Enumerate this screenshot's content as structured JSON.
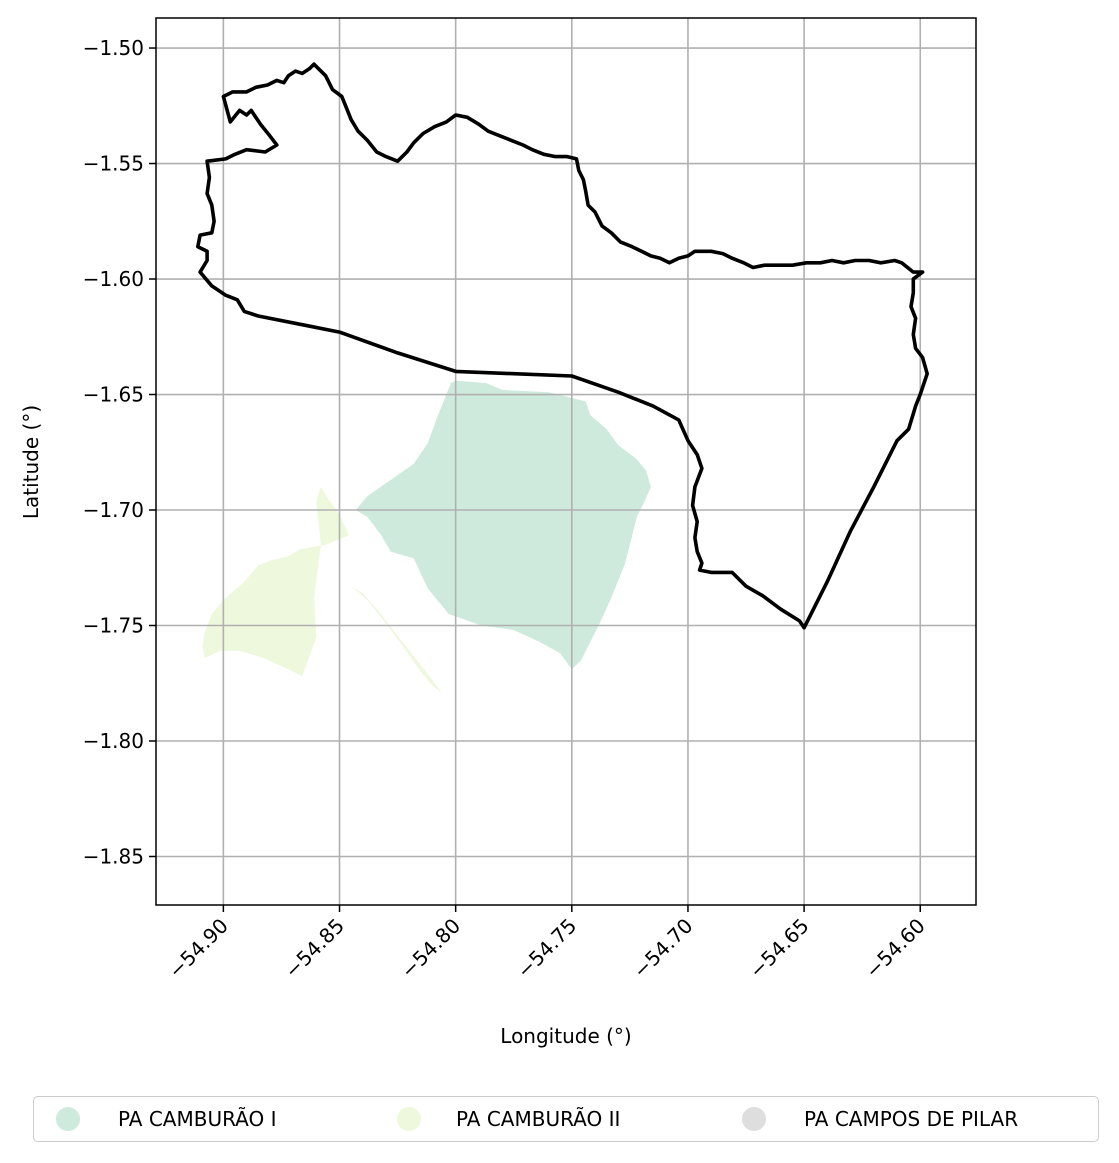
{
  "map": {
    "xlabel": "Longitude (°)",
    "ylabel": "Latitude (°)",
    "xlim": [
      -54.929,
      -54.576
    ],
    "ylim": [
      -1.871,
      -1.487
    ],
    "x_ticks": [
      {
        "value": -54.9,
        "label": "−54.90"
      },
      {
        "value": -54.85,
        "label": "−54.85"
      },
      {
        "value": -54.8,
        "label": "−54.80"
      },
      {
        "value": -54.75,
        "label": "−54.75"
      },
      {
        "value": -54.7,
        "label": "−54.70"
      },
      {
        "value": -54.65,
        "label": "−54.65"
      },
      {
        "value": -54.6,
        "label": "−54.60"
      }
    ],
    "y_ticks": [
      {
        "value": -1.5,
        "label": "−1.50"
      },
      {
        "value": -1.55,
        "label": "−1.55"
      },
      {
        "value": -1.6,
        "label": "−1.60"
      },
      {
        "value": -1.65,
        "label": "−1.65"
      },
      {
        "value": -1.7,
        "label": "−1.70"
      },
      {
        "value": -1.75,
        "label": "−1.75"
      },
      {
        "value": -1.8,
        "label": "−1.80"
      },
      {
        "value": -1.85,
        "label": "−1.85"
      }
    ],
    "grid": true,
    "boundary_color": "#000000",
    "boundary": [
      [
        -54.9,
        -1.521
      ],
      [
        -54.897,
        -1.532
      ],
      [
        -54.893,
        -1.527
      ],
      [
        -54.89,
        -1.529
      ],
      [
        -54.888,
        -1.527
      ],
      [
        -54.884,
        -1.533
      ],
      [
        -54.88,
        -1.538
      ],
      [
        -54.877,
        -1.542
      ],
      [
        -54.882,
        -1.545
      ],
      [
        -54.89,
        -1.544
      ],
      [
        -54.895,
        -1.546
      ],
      [
        -54.899,
        -1.548
      ],
      [
        -54.907,
        -1.549
      ],
      [
        -54.906,
        -1.556
      ],
      [
        -54.907,
        -1.563
      ],
      [
        -54.905,
        -1.568
      ],
      [
        -54.904,
        -1.575
      ],
      [
        -54.905,
        -1.58
      ],
      [
        -54.91,
        -1.581
      ],
      [
        -54.911,
        -1.586
      ],
      [
        -54.907,
        -1.588
      ],
      [
        -54.907,
        -1.592
      ],
      [
        -54.91,
        -1.597
      ],
      [
        -54.905,
        -1.603
      ],
      [
        -54.899,
        -1.607
      ],
      [
        -54.894,
        -1.609
      ],
      [
        -54.891,
        -1.614
      ],
      [
        -54.885,
        -1.616
      ],
      [
        -54.865,
        -1.62
      ],
      [
        -54.85,
        -1.623
      ],
      [
        -54.825,
        -1.632
      ],
      [
        -54.8,
        -1.64
      ],
      [
        -54.775,
        -1.641
      ],
      [
        -54.75,
        -1.642
      ],
      [
        -54.73,
        -1.649
      ],
      [
        -54.715,
        -1.655
      ],
      [
        -54.704,
        -1.661
      ],
      [
        -54.7,
        -1.67
      ],
      [
        -54.696,
        -1.676
      ],
      [
        -54.694,
        -1.682
      ],
      [
        -54.697,
        -1.69
      ],
      [
        -54.698,
        -1.698
      ],
      [
        -54.696,
        -1.705
      ],
      [
        -54.697,
        -1.712
      ],
      [
        -54.696,
        -1.718
      ],
      [
        -54.694,
        -1.723
      ],
      [
        -54.695,
        -1.726
      ],
      [
        -54.69,
        -1.727
      ],
      [
        -54.681,
        -1.727
      ],
      [
        -54.675,
        -1.733
      ],
      [
        -54.668,
        -1.737
      ],
      [
        -54.66,
        -1.743
      ],
      [
        -54.652,
        -1.748
      ],
      [
        -54.65,
        -1.751
      ],
      [
        -54.64,
        -1.731
      ],
      [
        -54.63,
        -1.709
      ],
      [
        -54.62,
        -1.69
      ],
      [
        -54.61,
        -1.67
      ],
      [
        -54.605,
        -1.665
      ],
      [
        -54.602,
        -1.655
      ],
      [
        -54.6,
        -1.65
      ],
      [
        -54.597,
        -1.641
      ],
      [
        -54.599,
        -1.634
      ],
      [
        -54.602,
        -1.63
      ],
      [
        -54.603,
        -1.624
      ],
      [
        -54.602,
        -1.617
      ],
      [
        -54.604,
        -1.612
      ],
      [
        -54.603,
        -1.606
      ],
      [
        -54.603,
        -1.6
      ],
      [
        -54.599,
        -1.597
      ],
      [
        -54.603,
        -1.597
      ],
      [
        -54.608,
        -1.593
      ],
      [
        -54.611,
        -1.592
      ],
      [
        -54.617,
        -1.593
      ],
      [
        -54.622,
        -1.592
      ],
      [
        -54.628,
        -1.592
      ],
      [
        -54.633,
        -1.593
      ],
      [
        -54.638,
        -1.592
      ],
      [
        -54.643,
        -1.593
      ],
      [
        -54.649,
        -1.593
      ],
      [
        -54.655,
        -1.594
      ],
      [
        -54.661,
        -1.594
      ],
      [
        -54.667,
        -1.594
      ],
      [
        -54.672,
        -1.595
      ],
      [
        -54.676,
        -1.593
      ],
      [
        -54.681,
        -1.591
      ],
      [
        -54.685,
        -1.589
      ],
      [
        -54.69,
        -1.588
      ],
      [
        -54.697,
        -1.588
      ],
      [
        -54.7,
        -1.59
      ],
      [
        -54.704,
        -1.591
      ],
      [
        -54.708,
        -1.593
      ],
      [
        -54.712,
        -1.591
      ],
      [
        -54.716,
        -1.59
      ],
      [
        -54.72,
        -1.588
      ],
      [
        -54.724,
        -1.586
      ],
      [
        -54.729,
        -1.584
      ],
      [
        -54.733,
        -1.58
      ],
      [
        -54.737,
        -1.577
      ],
      [
        -54.74,
        -1.571
      ],
      [
        -54.743,
        -1.568
      ],
      [
        -54.744,
        -1.562
      ],
      [
        -54.745,
        -1.557
      ],
      [
        -54.747,
        -1.553
      ],
      [
        -54.748,
        -1.548
      ],
      [
        -54.752,
        -1.547
      ],
      [
        -54.757,
        -1.547
      ],
      [
        -54.762,
        -1.546
      ],
      [
        -54.767,
        -1.544
      ],
      [
        -54.771,
        -1.542
      ],
      [
        -54.776,
        -1.54
      ],
      [
        -54.781,
        -1.538
      ],
      [
        -54.786,
        -1.536
      ],
      [
        -54.79,
        -1.533
      ],
      [
        -54.795,
        -1.53
      ],
      [
        -54.8,
        -1.529
      ],
      [
        -54.804,
        -1.532
      ],
      [
        -54.809,
        -1.534
      ],
      [
        -54.814,
        -1.537
      ],
      [
        -54.818,
        -1.541
      ],
      [
        -54.821,
        -1.545
      ],
      [
        -54.825,
        -1.549
      ],
      [
        -54.83,
        -1.547
      ],
      [
        -54.834,
        -1.545
      ],
      [
        -54.838,
        -1.54
      ],
      [
        -54.842,
        -1.536
      ],
      [
        -54.845,
        -1.531
      ],
      [
        -54.847,
        -1.526
      ],
      [
        -54.849,
        -1.521
      ],
      [
        -54.853,
        -1.518
      ],
      [
        -54.856,
        -1.512
      ],
      [
        -54.859,
        -1.509
      ],
      [
        -54.861,
        -1.507
      ],
      [
        -54.863,
        -1.509
      ],
      [
        -54.866,
        -1.511
      ],
      [
        -54.869,
        -1.51
      ],
      [
        -54.872,
        -1.512
      ],
      [
        -54.874,
        -1.515
      ],
      [
        -54.877,
        -1.514
      ],
      [
        -54.881,
        -1.516
      ],
      [
        -54.886,
        -1.517
      ],
      [
        -54.89,
        -1.519
      ],
      [
        -54.896,
        -1.519
      ],
      [
        -54.9,
        -1.521
      ]
    ],
    "regions": [
      {
        "name": "PA CAMBURÃO I",
        "color": "#cdeadc",
        "polygons": [
          [
            [
              -54.802,
              -1.645
            ],
            [
              -54.8,
              -1.644
            ],
            [
              -54.787,
              -1.645
            ],
            [
              -54.78,
              -1.648
            ],
            [
              -54.76,
              -1.649
            ],
            [
              -54.744,
              -1.653
            ],
            [
              -54.742,
              -1.659
            ],
            [
              -54.735,
              -1.665
            ],
            [
              -54.73,
              -1.672
            ],
            [
              -54.722,
              -1.678
            ],
            [
              -54.718,
              -1.683
            ],
            [
              -54.716,
              -1.69
            ],
            [
              -54.719,
              -1.697
            ],
            [
              -54.722,
              -1.703
            ],
            [
              -54.724,
              -1.711
            ],
            [
              -54.727,
              -1.723
            ],
            [
              -54.733,
              -1.738
            ],
            [
              -54.738,
              -1.749
            ],
            [
              -54.746,
              -1.765
            ],
            [
              -54.75,
              -1.769
            ],
            [
              -54.755,
              -1.762
            ],
            [
              -54.764,
              -1.757
            ],
            [
              -54.775,
              -1.752
            ],
            [
              -54.789,
              -1.75
            ],
            [
              -54.803,
              -1.745
            ],
            [
              -54.812,
              -1.734
            ],
            [
              -54.818,
              -1.721
            ],
            [
              -54.828,
              -1.718
            ],
            [
              -54.832,
              -1.711
            ],
            [
              -54.838,
              -1.703
            ],
            [
              -54.843,
              -1.7
            ],
            [
              -54.838,
              -1.694
            ],
            [
              -54.828,
              -1.687
            ],
            [
              -54.818,
              -1.68
            ],
            [
              -54.812,
              -1.671
            ],
            [
              -54.808,
              -1.66
            ],
            [
              -54.802,
              -1.645
            ]
          ]
        ]
      },
      {
        "name": "PA CAMBURÃO II",
        "color": "#eef8dc",
        "polygons": [
          [
            [
              -54.858,
              -1.69
            ],
            [
              -54.855,
              -1.695
            ],
            [
              -54.85,
              -1.702
            ],
            [
              -54.846,
              -1.711
            ],
            [
              -54.856,
              -1.715
            ],
            [
              -54.867,
              -1.717
            ],
            [
              -54.872,
              -1.72
            ],
            [
              -54.88,
              -1.722
            ],
            [
              -54.885,
              -1.724
            ],
            [
              -54.891,
              -1.731
            ],
            [
              -54.9,
              -1.739
            ],
            [
              -54.905,
              -1.745
            ],
            [
              -54.908,
              -1.753
            ],
            [
              -54.909,
              -1.759
            ],
            [
              -54.908,
              -1.764
            ],
            [
              -54.901,
              -1.761
            ],
            [
              -54.893,
              -1.761
            ],
            [
              -54.883,
              -1.764
            ],
            [
              -54.872,
              -1.769
            ],
            [
              -54.866,
              -1.772
            ],
            [
              -54.86,
              -1.755
            ],
            [
              -54.861,
              -1.738
            ],
            [
              -54.858,
              -1.715
            ],
            [
              -54.86,
              -1.696
            ],
            [
              -54.858,
              -1.69
            ]
          ],
          [
            [
              -54.845,
              -1.733
            ],
            [
              -54.838,
              -1.739
            ],
            [
              -54.83,
              -1.749
            ],
            [
              -54.822,
              -1.76
            ],
            [
              -54.815,
              -1.77
            ],
            [
              -54.81,
              -1.776
            ],
            [
              -54.806,
              -1.779
            ],
            [
              -54.812,
              -1.771
            ],
            [
              -54.823,
              -1.757
            ],
            [
              -54.833,
              -1.744
            ],
            [
              -54.84,
              -1.736
            ],
            [
              -54.845,
              -1.733
            ]
          ]
        ]
      },
      {
        "name": "PA CAMPOS DE PILAR",
        "color": "#dedede",
        "polygons": []
      }
    ]
  },
  "legend": {
    "items": [
      {
        "label": "PA CAMBURÃO I",
        "color": "#cdeadc"
      },
      {
        "label": "PA CAMBURÃO II",
        "color": "#eef8dc"
      },
      {
        "label": "PA CAMPOS DE PILAR",
        "color": "#dedede"
      }
    ]
  }
}
